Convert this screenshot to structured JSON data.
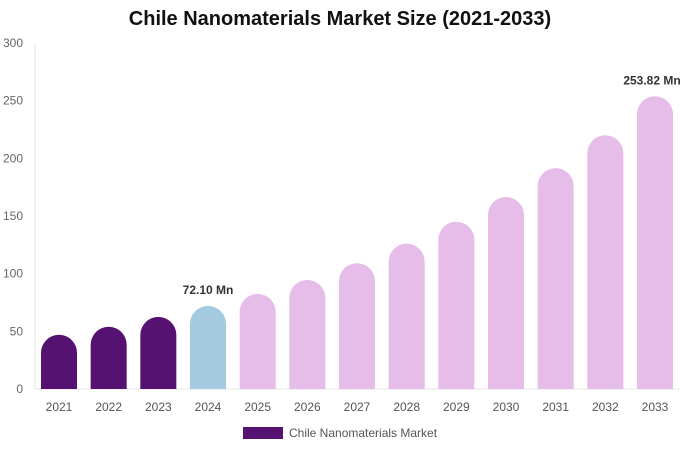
{
  "chart_data": {
    "type": "bar",
    "title": "Chile Nanomaterials Market Size (2021-2033)",
    "categories": [
      "2021",
      "2022",
      "2023",
      "2024",
      "2025",
      "2026",
      "2027",
      "2028",
      "2029",
      "2030",
      "2031",
      "2032",
      "2033"
    ],
    "series": [
      {
        "name": "Chile Nanomaterials Market",
        "values": [
          47,
          54,
          62.5,
          72.1,
          82.5,
          94.5,
          109,
          126,
          145,
          166.5,
          191.5,
          220,
          253.82
        ]
      }
    ],
    "ylim": [
      0,
      300
    ],
    "yticks": [
      0,
      50,
      100,
      150,
      200,
      250,
      300
    ],
    "grid": false,
    "legend_position": "bottom",
    "annotations": [
      {
        "category": "2024",
        "text": "72.10 Mn"
      },
      {
        "category": "2033",
        "text": "253.82 Mn"
      }
    ],
    "colors": {
      "historical": "#561271",
      "base_year": "#a4cadf",
      "forecast": "#e6bce9"
    }
  }
}
